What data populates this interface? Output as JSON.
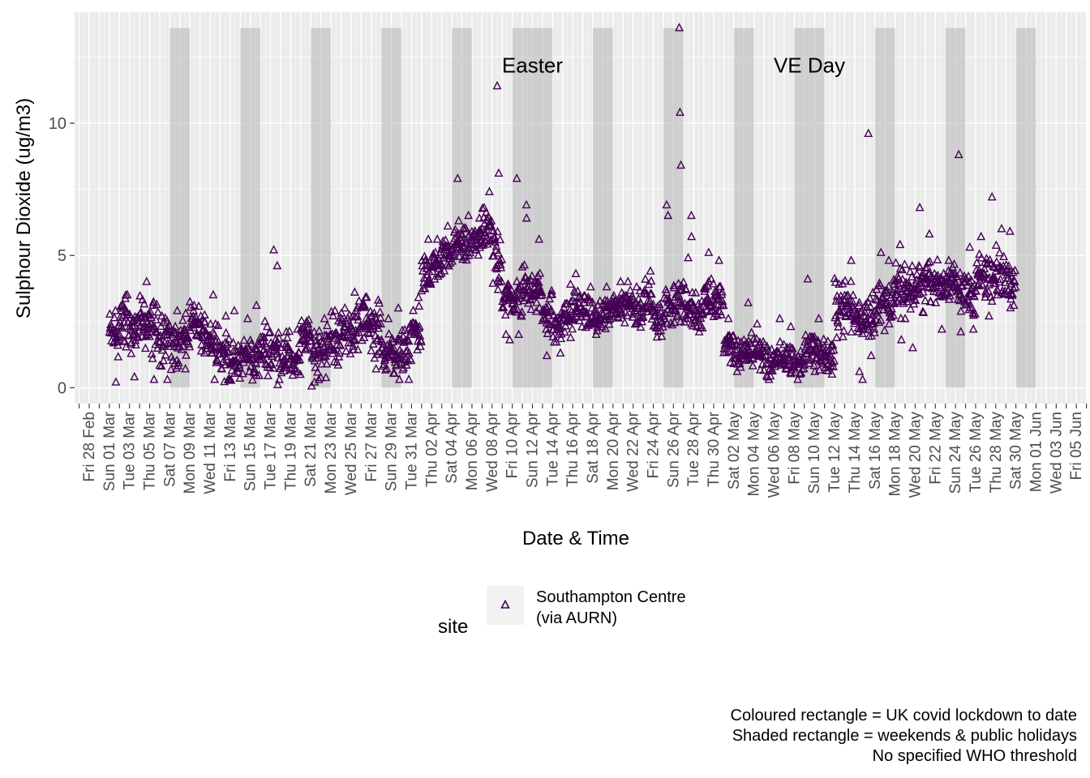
{
  "chart_data": {
    "type": "scatter",
    "ylabel": "Sulphour Dioxide (ug/m3)",
    "xlabel": "Date & Time",
    "ylim": [
      -0.6,
      14.2
    ],
    "yticks": [
      0,
      5,
      10
    ],
    "grid": true,
    "x_tick_labels": [
      "Fri 28 Feb",
      "Sun 01 Mar",
      "Tue 03 Mar",
      "Thu 05 Mar",
      "Sat 07 Mar",
      "Mon 09 Mar",
      "Wed 11 Mar",
      "Fri 13 Mar",
      "Sun 15 Mar",
      "Tue 17 Mar",
      "Thu 19 Mar",
      "Sat 21 Mar",
      "Mon 23 Mar",
      "Wed 25 Mar",
      "Fri 27 Mar",
      "Sun 29 Mar",
      "Tue 31 Mar",
      "Thu 02 Apr",
      "Sat 04 Apr",
      "Mon 06 Apr",
      "Wed 08 Apr",
      "Fri 10 Apr",
      "Sun 12 Apr",
      "Tue 14 Apr",
      "Thu 16 Apr",
      "Sat 18 Apr",
      "Mon 20 Apr",
      "Wed 22 Apr",
      "Fri 24 Apr",
      "Sun 26 Apr",
      "Tue 28 Apr",
      "Thu 30 Apr",
      "Sat 02 May",
      "Mon 04 May",
      "Wed 06 May",
      "Fri 08 May",
      "Sun 10 May",
      "Tue 12 May",
      "Thu 14 May",
      "Sat 16 May",
      "Mon 18 May",
      "Wed 20 May",
      "Fri 22 May",
      "Sun 24 May",
      "Tue 26 May",
      "Thu 28 May",
      "Sat 30 May",
      "Mon 01 Jun",
      "Wed 03 Jun",
      "Fri 05 Jun"
    ],
    "shaded_periods": [
      {
        "start": "2020-03-07",
        "end": "2020-03-09"
      },
      {
        "start": "2020-03-14",
        "end": "2020-03-16"
      },
      {
        "start": "2020-03-21",
        "end": "2020-03-23"
      },
      {
        "start": "2020-03-28",
        "end": "2020-03-30"
      },
      {
        "start": "2020-04-04",
        "end": "2020-04-06"
      },
      {
        "start": "2020-04-10",
        "end": "2020-04-14"
      },
      {
        "start": "2020-04-18",
        "end": "2020-04-20"
      },
      {
        "start": "2020-04-25",
        "end": "2020-04-27"
      },
      {
        "start": "2020-05-02",
        "end": "2020-05-04"
      },
      {
        "start": "2020-05-08",
        "end": "2020-05-11"
      },
      {
        "start": "2020-05-16",
        "end": "2020-05-18"
      },
      {
        "start": "2020-05-23",
        "end": "2020-05-25"
      },
      {
        "start": "2020-05-30",
        "end": "2020-06-01"
      }
    ],
    "annotations": [
      {
        "text": "Easter",
        "x": "2020-04-12",
        "y": 12.2
      },
      {
        "text": "VE Day",
        "x": "2020-05-09T12:00",
        "y": 12.2
      }
    ],
    "series": [
      {
        "name": "Southampton Centre\n(via AURN)",
        "marker": "triangle-open",
        "color": "#440154",
        "daily_values": [
          {
            "date": "2020-03-01",
            "typical": 2.0,
            "spread": 0.7,
            "spikes": [
              2.9,
              0.2
            ]
          },
          {
            "date": "2020-03-02",
            "typical": 2.5,
            "spread": 0.8,
            "spikes": [
              3.5
            ]
          },
          {
            "date": "2020-03-03",
            "typical": 2.2,
            "spread": 0.8,
            "spikes": [
              0.4
            ]
          },
          {
            "date": "2020-03-04",
            "typical": 2.4,
            "spread": 0.7,
            "spikes": [
              4.0
            ]
          },
          {
            "date": "2020-03-05",
            "typical": 2.2,
            "spread": 0.8,
            "spikes": [
              0.3
            ]
          },
          {
            "date": "2020-03-06",
            "typical": 2.0,
            "spread": 0.8,
            "spikes": [
              0.3
            ]
          },
          {
            "date": "2020-03-07",
            "typical": 1.6,
            "spread": 0.7,
            "spikes": [
              2.9
            ]
          },
          {
            "date": "2020-03-08",
            "typical": 1.9,
            "spread": 0.6,
            "spikes": [
              0.7
            ]
          },
          {
            "date": "2020-03-09",
            "typical": 2.3,
            "spread": 0.6,
            "spikes": [
              2.9
            ]
          },
          {
            "date": "2020-03-10",
            "typical": 2.0,
            "spread": 0.6,
            "spikes": [
              1.3
            ]
          },
          {
            "date": "2020-03-11",
            "typical": 1.8,
            "spread": 0.8,
            "spikes": [
              3.5,
              0.3
            ]
          },
          {
            "date": "2020-03-12",
            "typical": 1.2,
            "spread": 0.7,
            "spikes": [
              2.7
            ]
          },
          {
            "date": "2020-03-13",
            "typical": 0.9,
            "spread": 0.5,
            "spikes": [
              2.9
            ]
          },
          {
            "date": "2020-03-14",
            "typical": 1.2,
            "spread": 0.6,
            "spikes": [
              2.6
            ]
          },
          {
            "date": "2020-03-15",
            "typical": 1.1,
            "spread": 0.6,
            "spikes": [
              3.1
            ]
          },
          {
            "date": "2020-03-16",
            "typical": 1.4,
            "spread": 0.6,
            "spikes": [
              2.5
            ]
          },
          {
            "date": "2020-03-17",
            "typical": 1.4,
            "spread": 0.7,
            "spikes": [
              5.2,
              4.6,
              0.1
            ]
          },
          {
            "date": "2020-03-18",
            "typical": 1.2,
            "spread": 0.6,
            "spikes": [
              2.1
            ]
          },
          {
            "date": "2020-03-19",
            "typical": 1.0,
            "spread": 0.6,
            "spikes": [
              2.2
            ]
          },
          {
            "date": "2020-03-20",
            "typical": 1.9,
            "spread": 0.5,
            "spikes": [
              2.4
            ]
          },
          {
            "date": "2020-03-21",
            "typical": 1.4,
            "spread": 0.8,
            "spikes": [
              0.2
            ]
          },
          {
            "date": "2020-03-22",
            "typical": 1.5,
            "spread": 0.8,
            "spikes": [
              2.6
            ]
          },
          {
            "date": "2020-03-23",
            "typical": 1.8,
            "spread": 0.7,
            "spikes": [
              2.9
            ]
          },
          {
            "date": "2020-03-24",
            "typical": 2.1,
            "spread": 0.6,
            "spikes": [
              3.0
            ]
          },
          {
            "date": "2020-03-25",
            "typical": 2.2,
            "spread": 0.7,
            "spikes": [
              3.6
            ]
          },
          {
            "date": "2020-03-26",
            "typical": 2.5,
            "spread": 0.7,
            "spikes": [
              3.4
            ]
          },
          {
            "date": "2020-03-27",
            "typical": 2.2,
            "spread": 0.7,
            "spikes": [
              3.3,
              0.7
            ]
          },
          {
            "date": "2020-03-28",
            "typical": 1.4,
            "spread": 0.6,
            "spikes": [
              2.6
            ]
          },
          {
            "date": "2020-03-29",
            "typical": 1.2,
            "spread": 0.6,
            "spikes": [
              3.0,
              0.3
            ]
          },
          {
            "date": "2020-03-30",
            "typical": 1.5,
            "spread": 0.7,
            "spikes": [
              0.3
            ]
          },
          {
            "date": "2020-03-31",
            "typical": 2.2,
            "spread": 0.8,
            "spikes": [
              3.4
            ]
          },
          {
            "date": "2020-04-01",
            "typical": 4.2,
            "spread": 0.6,
            "spikes": [
              5.6
            ]
          },
          {
            "date": "2020-04-02",
            "typical": 4.6,
            "spread": 0.5,
            "spikes": [
              5.6
            ]
          },
          {
            "date": "2020-04-03",
            "typical": 4.9,
            "spread": 0.5,
            "spikes": [
              6.1
            ]
          },
          {
            "date": "2020-04-04",
            "typical": 5.4,
            "spread": 0.5,
            "spikes": [
              7.9,
              6.3
            ]
          },
          {
            "date": "2020-04-05",
            "typical": 5.3,
            "spread": 0.5,
            "spikes": [
              6.5
            ]
          },
          {
            "date": "2020-04-06",
            "typical": 5.6,
            "spread": 0.5,
            "spikes": [
              6.4
            ]
          },
          {
            "date": "2020-04-07",
            "typical": 5.9,
            "spread": 0.6,
            "spikes": [
              7.4
            ]
          },
          {
            "date": "2020-04-08",
            "typical": 5.0,
            "spread": 1.0,
            "spikes": [
              8.1,
              11.4,
              3.7
            ]
          },
          {
            "date": "2020-04-09",
            "typical": 3.4,
            "spread": 0.6,
            "spikes": [
              2.0,
              1.8
            ]
          },
          {
            "date": "2020-04-10",
            "typical": 3.3,
            "spread": 0.6,
            "spikes": [
              7.9,
              2.0
            ]
          },
          {
            "date": "2020-04-11",
            "typical": 3.8,
            "spread": 0.6,
            "spikes": [
              6.9,
              6.4
            ]
          },
          {
            "date": "2020-04-12",
            "typical": 3.6,
            "spread": 0.6,
            "spikes": [
              5.6
            ]
          },
          {
            "date": "2020-04-13",
            "typical": 2.9,
            "spread": 0.6,
            "spikes": [
              1.2
            ]
          },
          {
            "date": "2020-04-14",
            "typical": 2.3,
            "spread": 0.5,
            "spikes": [
              1.3
            ]
          },
          {
            "date": "2020-04-15",
            "typical": 2.7,
            "spread": 0.5,
            "spikes": [
              3.9
            ]
          },
          {
            "date": "2020-04-16",
            "typical": 3.0,
            "spread": 0.5,
            "spikes": [
              4.3
            ]
          },
          {
            "date": "2020-04-17",
            "typical": 2.8,
            "spread": 0.5,
            "spikes": [
              3.8
            ]
          },
          {
            "date": "2020-04-18",
            "typical": 2.6,
            "spread": 0.5,
            "spikes": [
              2.0
            ]
          },
          {
            "date": "2020-04-19",
            "typical": 2.8,
            "spread": 0.5,
            "spikes": [
              3.8
            ]
          },
          {
            "date": "2020-04-20",
            "typical": 3.1,
            "spread": 0.5,
            "spikes": [
              4.0
            ]
          },
          {
            "date": "2020-04-21",
            "typical": 3.2,
            "spread": 0.5,
            "spikes": [
              4.0
            ]
          },
          {
            "date": "2020-04-22",
            "typical": 3.0,
            "spread": 0.5,
            "spikes": [
              3.8
            ]
          },
          {
            "date": "2020-04-23",
            "typical": 3.3,
            "spread": 0.5,
            "spikes": [
              4.4
            ]
          },
          {
            "date": "2020-04-24",
            "typical": 2.5,
            "spread": 0.5,
            "spikes": [
              1.9
            ]
          },
          {
            "date": "2020-04-25",
            "typical": 3.0,
            "spread": 0.5,
            "spikes": [
              6.9,
              6.5
            ]
          },
          {
            "date": "2020-04-26",
            "typical": 3.3,
            "spread": 0.6,
            "spikes": [
              13.6,
              10.4,
              8.4
            ]
          },
          {
            "date": "2020-04-27",
            "typical": 3.0,
            "spread": 0.6,
            "spikes": [
              6.5,
              5.7,
              4.9
            ]
          },
          {
            "date": "2020-04-28",
            "typical": 2.9,
            "spread": 0.5,
            "spikes": [
              2.1
            ]
          },
          {
            "date": "2020-04-29",
            "typical": 3.4,
            "spread": 0.6,
            "spikes": [
              5.1
            ]
          },
          {
            "date": "2020-04-30",
            "typical": 3.3,
            "spread": 0.6,
            "spikes": [
              4.8
            ]
          },
          {
            "date": "2020-05-01",
            "typical": 1.6,
            "spread": 0.4,
            "spikes": [
              2.6
            ]
          },
          {
            "date": "2020-05-02",
            "typical": 1.2,
            "spread": 0.4,
            "spikes": [
              0.6
            ]
          },
          {
            "date": "2020-05-03",
            "typical": 1.4,
            "spread": 0.5,
            "spikes": [
              3.2
            ]
          },
          {
            "date": "2020-05-04",
            "typical": 1.3,
            "spread": 0.5,
            "spikes": [
              2.4
            ]
          },
          {
            "date": "2020-05-05",
            "typical": 1.0,
            "spread": 0.5,
            "spikes": [
              0.3
            ]
          },
          {
            "date": "2020-05-06",
            "typical": 1.0,
            "spread": 0.5,
            "spikes": [
              2.6
            ]
          },
          {
            "date": "2020-05-07",
            "typical": 1.1,
            "spread": 0.5,
            "spikes": [
              2.3
            ]
          },
          {
            "date": "2020-05-08",
            "typical": 0.9,
            "spread": 0.4,
            "spikes": [
              0.3
            ]
          },
          {
            "date": "2020-05-09",
            "typical": 1.5,
            "spread": 0.5,
            "spikes": [
              4.1
            ]
          },
          {
            "date": "2020-05-10",
            "typical": 1.3,
            "spread": 0.5,
            "spikes": [
              2.6
            ]
          },
          {
            "date": "2020-05-11",
            "typical": 1.1,
            "spread": 0.5,
            "spikes": [
              0.5
            ]
          },
          {
            "date": "2020-05-12",
            "typical": 3.1,
            "spread": 0.7,
            "spikes": [
              3.9
            ]
          },
          {
            "date": "2020-05-13",
            "typical": 3.0,
            "spread": 0.7,
            "spikes": [
              4.8
            ]
          },
          {
            "date": "2020-05-14",
            "typical": 2.6,
            "spread": 0.6,
            "spikes": [
              0.3,
              0.6
            ]
          },
          {
            "date": "2020-05-15",
            "typical": 2.8,
            "spread": 0.7,
            "spikes": [
              9.6,
              1.2
            ]
          },
          {
            "date": "2020-05-16",
            "typical": 3.1,
            "spread": 0.7,
            "spikes": [
              5.1
            ]
          },
          {
            "date": "2020-05-17",
            "typical": 3.3,
            "spread": 0.7,
            "spikes": [
              4.8
            ]
          },
          {
            "date": "2020-05-18",
            "typical": 3.6,
            "spread": 0.7,
            "spikes": [
              5.4,
              1.8
            ]
          },
          {
            "date": "2020-05-19",
            "typical": 3.5,
            "spread": 0.7,
            "spikes": [
              1.5
            ]
          },
          {
            "date": "2020-05-20",
            "typical": 3.9,
            "spread": 0.7,
            "spikes": [
              6.8
            ]
          },
          {
            "date": "2020-05-21",
            "typical": 4.1,
            "spread": 0.6,
            "spikes": [
              5.8
            ]
          },
          {
            "date": "2020-05-22",
            "typical": 3.9,
            "spread": 0.6,
            "spikes": [
              2.2
            ]
          },
          {
            "date": "2020-05-23",
            "typical": 4.0,
            "spread": 0.5,
            "spikes": [
              4.8
            ]
          },
          {
            "date": "2020-05-24",
            "typical": 3.6,
            "spread": 0.6,
            "spikes": [
              8.8,
              2.1
            ]
          },
          {
            "date": "2020-05-25",
            "typical": 3.6,
            "spread": 0.7,
            "spikes": [
              5.3,
              2.2
            ]
          },
          {
            "date": "2020-05-26",
            "typical": 4.2,
            "spread": 0.7,
            "spikes": [
              5.7
            ]
          },
          {
            "date": "2020-05-27",
            "typical": 4.0,
            "spread": 0.7,
            "spikes": [
              7.2,
              2.7
            ]
          },
          {
            "date": "2020-05-28",
            "typical": 4.3,
            "spread": 0.7,
            "spikes": [
              6.0
            ]
          },
          {
            "date": "2020-05-29",
            "typical": 4.2,
            "spread": 0.7,
            "spikes": [
              5.9,
              3.1
            ]
          }
        ]
      }
    ]
  },
  "legend": {
    "title": "site",
    "entries": [
      {
        "line1": "Southampton Centre",
        "line2": "(via AURN)"
      }
    ]
  },
  "caption": {
    "line1": "Coloured rectangle = UK covid lockdown to date",
    "line2": "Shaded rectangle = weekends & public holidays",
    "line3": "No specified WHO threshold"
  }
}
